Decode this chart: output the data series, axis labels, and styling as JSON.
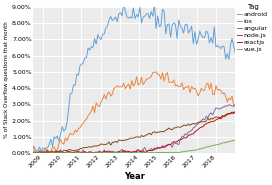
{
  "title": "",
  "xlabel": "Year",
  "ylabel": "% of Stack Overflow questions that month",
  "legend_title": "Tag",
  "tags": [
    "android",
    "ios",
    "angular",
    "node.js",
    "reactjs",
    "vue.js"
  ],
  "colors": [
    "#5b9bd5",
    "#ed7d31",
    "#7b5ea7",
    "#843c0c",
    "#c00000",
    "#70ad47"
  ],
  "xlim": [
    2008.5,
    2019.0
  ],
  "ylim": [
    0.0,
    0.09
  ],
  "yticks": [
    0.0,
    0.01,
    0.02,
    0.03,
    0.04,
    0.05,
    0.06,
    0.07,
    0.08,
    0.09
  ],
  "ytick_labels": [
    "0.00%",
    "1.00%",
    "2.00%",
    "3.00%",
    "4.00%",
    "5.00%",
    "6.00%",
    "7.00%",
    "8.00%",
    "9.00%"
  ],
  "xticks": [
    2009,
    2010,
    2011,
    2012,
    2013,
    2014,
    2015,
    2016,
    2017,
    2018
  ],
  "plot_bg": "#ebebeb",
  "fig_bg": "#ffffff",
  "grid_color": "#ffffff",
  "font_size": 4.5,
  "legend_font_size": 4.5,
  "line_width": 0.65
}
